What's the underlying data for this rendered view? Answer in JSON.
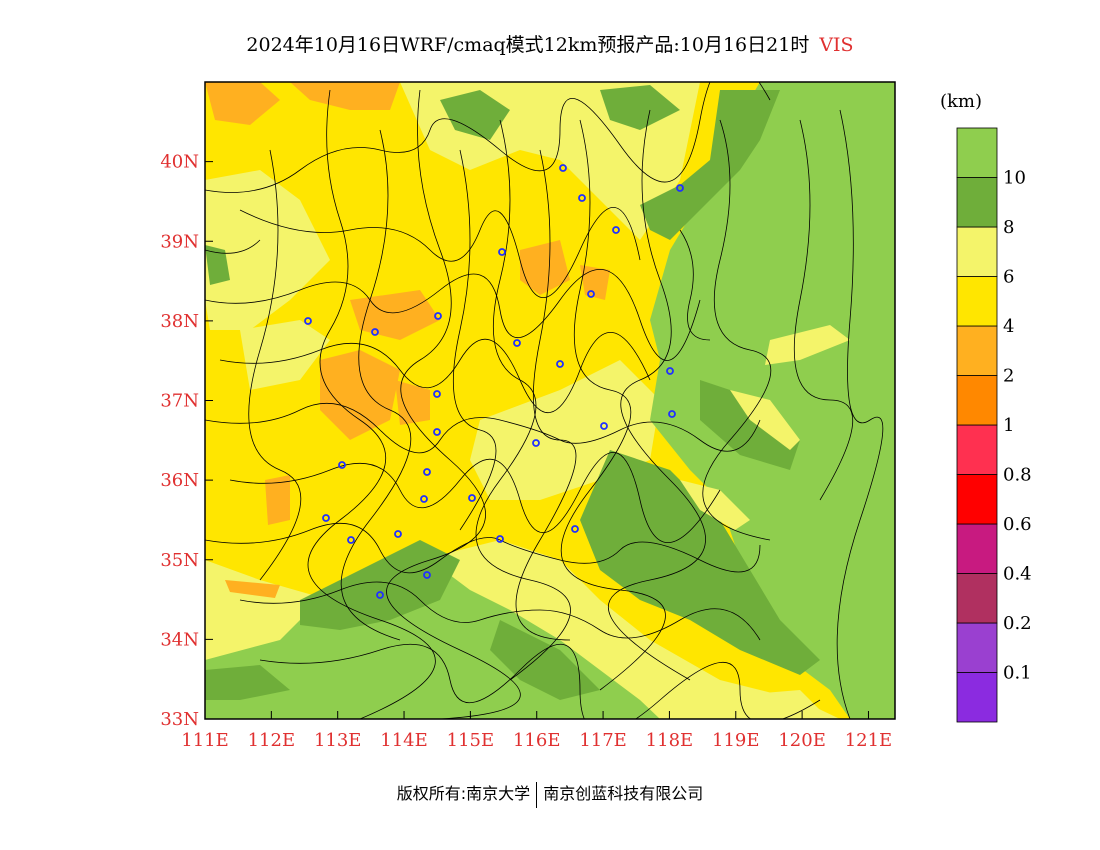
{
  "title": {
    "text": "2024年10月16日WRF/cmaq模式12km预报产品:10月16日21时",
    "variable": "VIS",
    "variable_color": "#e03030"
  },
  "legend": {
    "unit": "(km)",
    "colors": [
      "#8b2be0",
      "#9a40d0",
      "#b03060",
      "#c81a80",
      "#ff0000",
      "#ff3050",
      "#ff8800",
      "#ffb020",
      "#ffe600",
      "#f4f46a",
      "#6fae3a",
      "#8fce4e"
    ],
    "labels": [
      "0.1",
      "0.2",
      "0.4",
      "0.6",
      "0.8",
      "1",
      "2",
      "4",
      "6",
      "8",
      "10"
    ]
  },
  "axes": {
    "lat_labels": [
      "40N",
      "39N",
      "38N",
      "37N",
      "36N",
      "35N",
      "34N",
      "33N"
    ],
    "lon_labels": [
      "111E",
      "112E",
      "113E",
      "114E",
      "115E",
      "116E",
      "117E",
      "118E",
      "119E",
      "120E",
      "121E"
    ],
    "label_color": "#e03030"
  },
  "map": {
    "lon_range": [
      111,
      121.4
    ],
    "lat_range": [
      33,
      41
    ],
    "colors": {
      "yellow": "#ffe600",
      "orange": "#ffb020",
      "pale": "#f4f46a",
      "dark_green": "#6fae3a",
      "light_green": "#8fce4e"
    },
    "station_icon": "station-marker-icon"
  },
  "copyright": {
    "left": "版权所有:南京大学",
    "right": "南京创蓝科技有限公司"
  }
}
